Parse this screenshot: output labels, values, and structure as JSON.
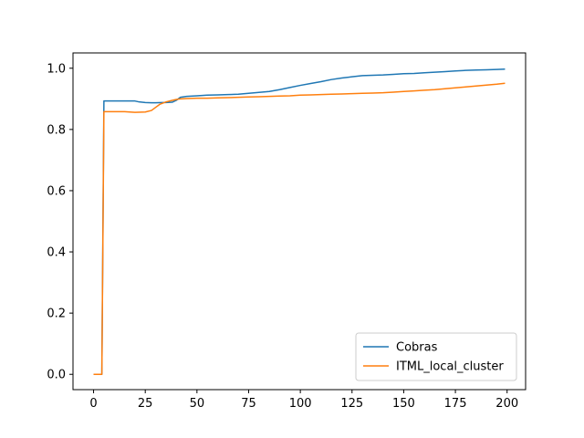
{
  "chart_data": {
    "type": "line",
    "title": "",
    "xlabel": "",
    "ylabel": "",
    "xlim": [
      -9.95,
      208.95
    ],
    "ylim": [
      -0.05,
      1.05
    ],
    "xticks": [
      0,
      25,
      50,
      75,
      100,
      125,
      150,
      175,
      200
    ],
    "yticks": [
      0.0,
      0.2,
      0.4,
      0.6,
      0.8,
      1.0
    ],
    "xtick_labels": [
      "0",
      "25",
      "50",
      "75",
      "100",
      "125",
      "150",
      "175",
      "200"
    ],
    "ytick_labels": [
      "0.0",
      "0.2",
      "0.4",
      "0.6",
      "0.8",
      "1.0"
    ],
    "grid": false,
    "legend_position": "bottom-right",
    "series": [
      {
        "name": "Cobras",
        "color": "#1f77b4",
        "x": [
          0,
          1,
          2,
          3,
          4,
          5,
          6,
          10,
          15,
          20,
          22,
          25,
          28,
          30,
          33,
          35,
          38,
          40,
          42,
          45,
          50,
          55,
          60,
          65,
          70,
          75,
          80,
          85,
          90,
          95,
          100,
          105,
          110,
          115,
          120,
          125,
          130,
          135,
          140,
          145,
          150,
          155,
          160,
          165,
          170,
          175,
          180,
          185,
          190,
          195,
          199
        ],
        "y": [
          0.0,
          0.0,
          0.0,
          0.0,
          0.0,
          0.893,
          0.893,
          0.893,
          0.893,
          0.893,
          0.89,
          0.888,
          0.887,
          0.887,
          0.888,
          0.888,
          0.889,
          0.895,
          0.905,
          0.908,
          0.91,
          0.912,
          0.913,
          0.914,
          0.915,
          0.918,
          0.921,
          0.924,
          0.93,
          0.937,
          0.944,
          0.95,
          0.956,
          0.963,
          0.968,
          0.972,
          0.976,
          0.977,
          0.978,
          0.98,
          0.982,
          0.983,
          0.985,
          0.987,
          0.989,
          0.991,
          0.993,
          0.994,
          0.995,
          0.996,
          0.997
        ]
      },
      {
        "name": "ITML_local_cluster",
        "color": "#ff7f0e",
        "x": [
          0,
          1,
          2,
          3,
          4,
          5,
          6,
          10,
          15,
          20,
          25,
          28,
          30,
          32,
          35,
          38,
          40,
          42,
          45,
          50,
          55,
          60,
          65,
          70,
          75,
          80,
          85,
          90,
          95,
          100,
          105,
          110,
          115,
          120,
          125,
          130,
          135,
          140,
          145,
          150,
          155,
          160,
          165,
          170,
          175,
          180,
          185,
          190,
          195,
          199
        ],
        "y": [
          0.0,
          0.0,
          0.0,
          0.0,
          0.0,
          0.858,
          0.858,
          0.858,
          0.858,
          0.856,
          0.857,
          0.862,
          0.872,
          0.882,
          0.89,
          0.895,
          0.898,
          0.9,
          0.901,
          0.902,
          0.902,
          0.903,
          0.904,
          0.905,
          0.906,
          0.907,
          0.908,
          0.909,
          0.91,
          0.912,
          0.913,
          0.914,
          0.915,
          0.916,
          0.917,
          0.918,
          0.919,
          0.92,
          0.922,
          0.924,
          0.926,
          0.928,
          0.93,
          0.933,
          0.936,
          0.939,
          0.942,
          0.945,
          0.948,
          0.951
        ]
      }
    ]
  }
}
